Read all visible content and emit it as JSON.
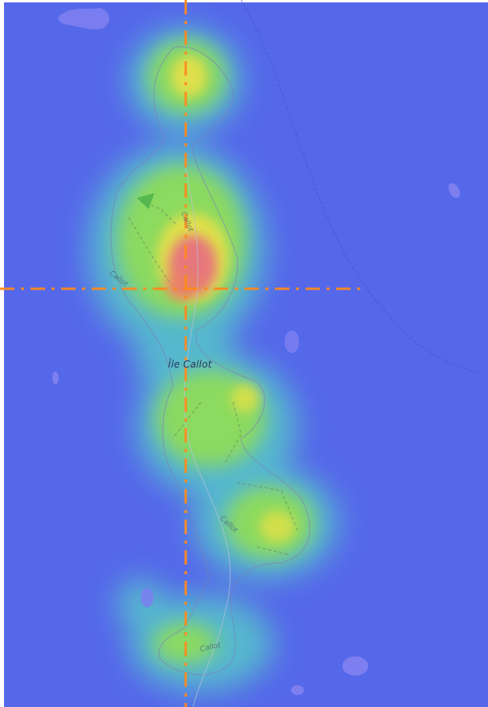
{
  "map": {
    "place_label": "Île Callot",
    "road_labels": [
      "Callot",
      "Callot",
      "Callot",
      "Callot"
    ],
    "colors": {
      "water": "#5568ea",
      "heat_low": "#56c6c9",
      "heat_mid": "#8fdc5a",
      "heat_high": "#e8e04a",
      "heat_peak": "#e8727f",
      "crosshair": "#ff8a1e",
      "islet": "#7d7ff0",
      "path": "#6c8a5a"
    },
    "crosshair_style": "dash-dot",
    "heatmap": "density overlay"
  }
}
